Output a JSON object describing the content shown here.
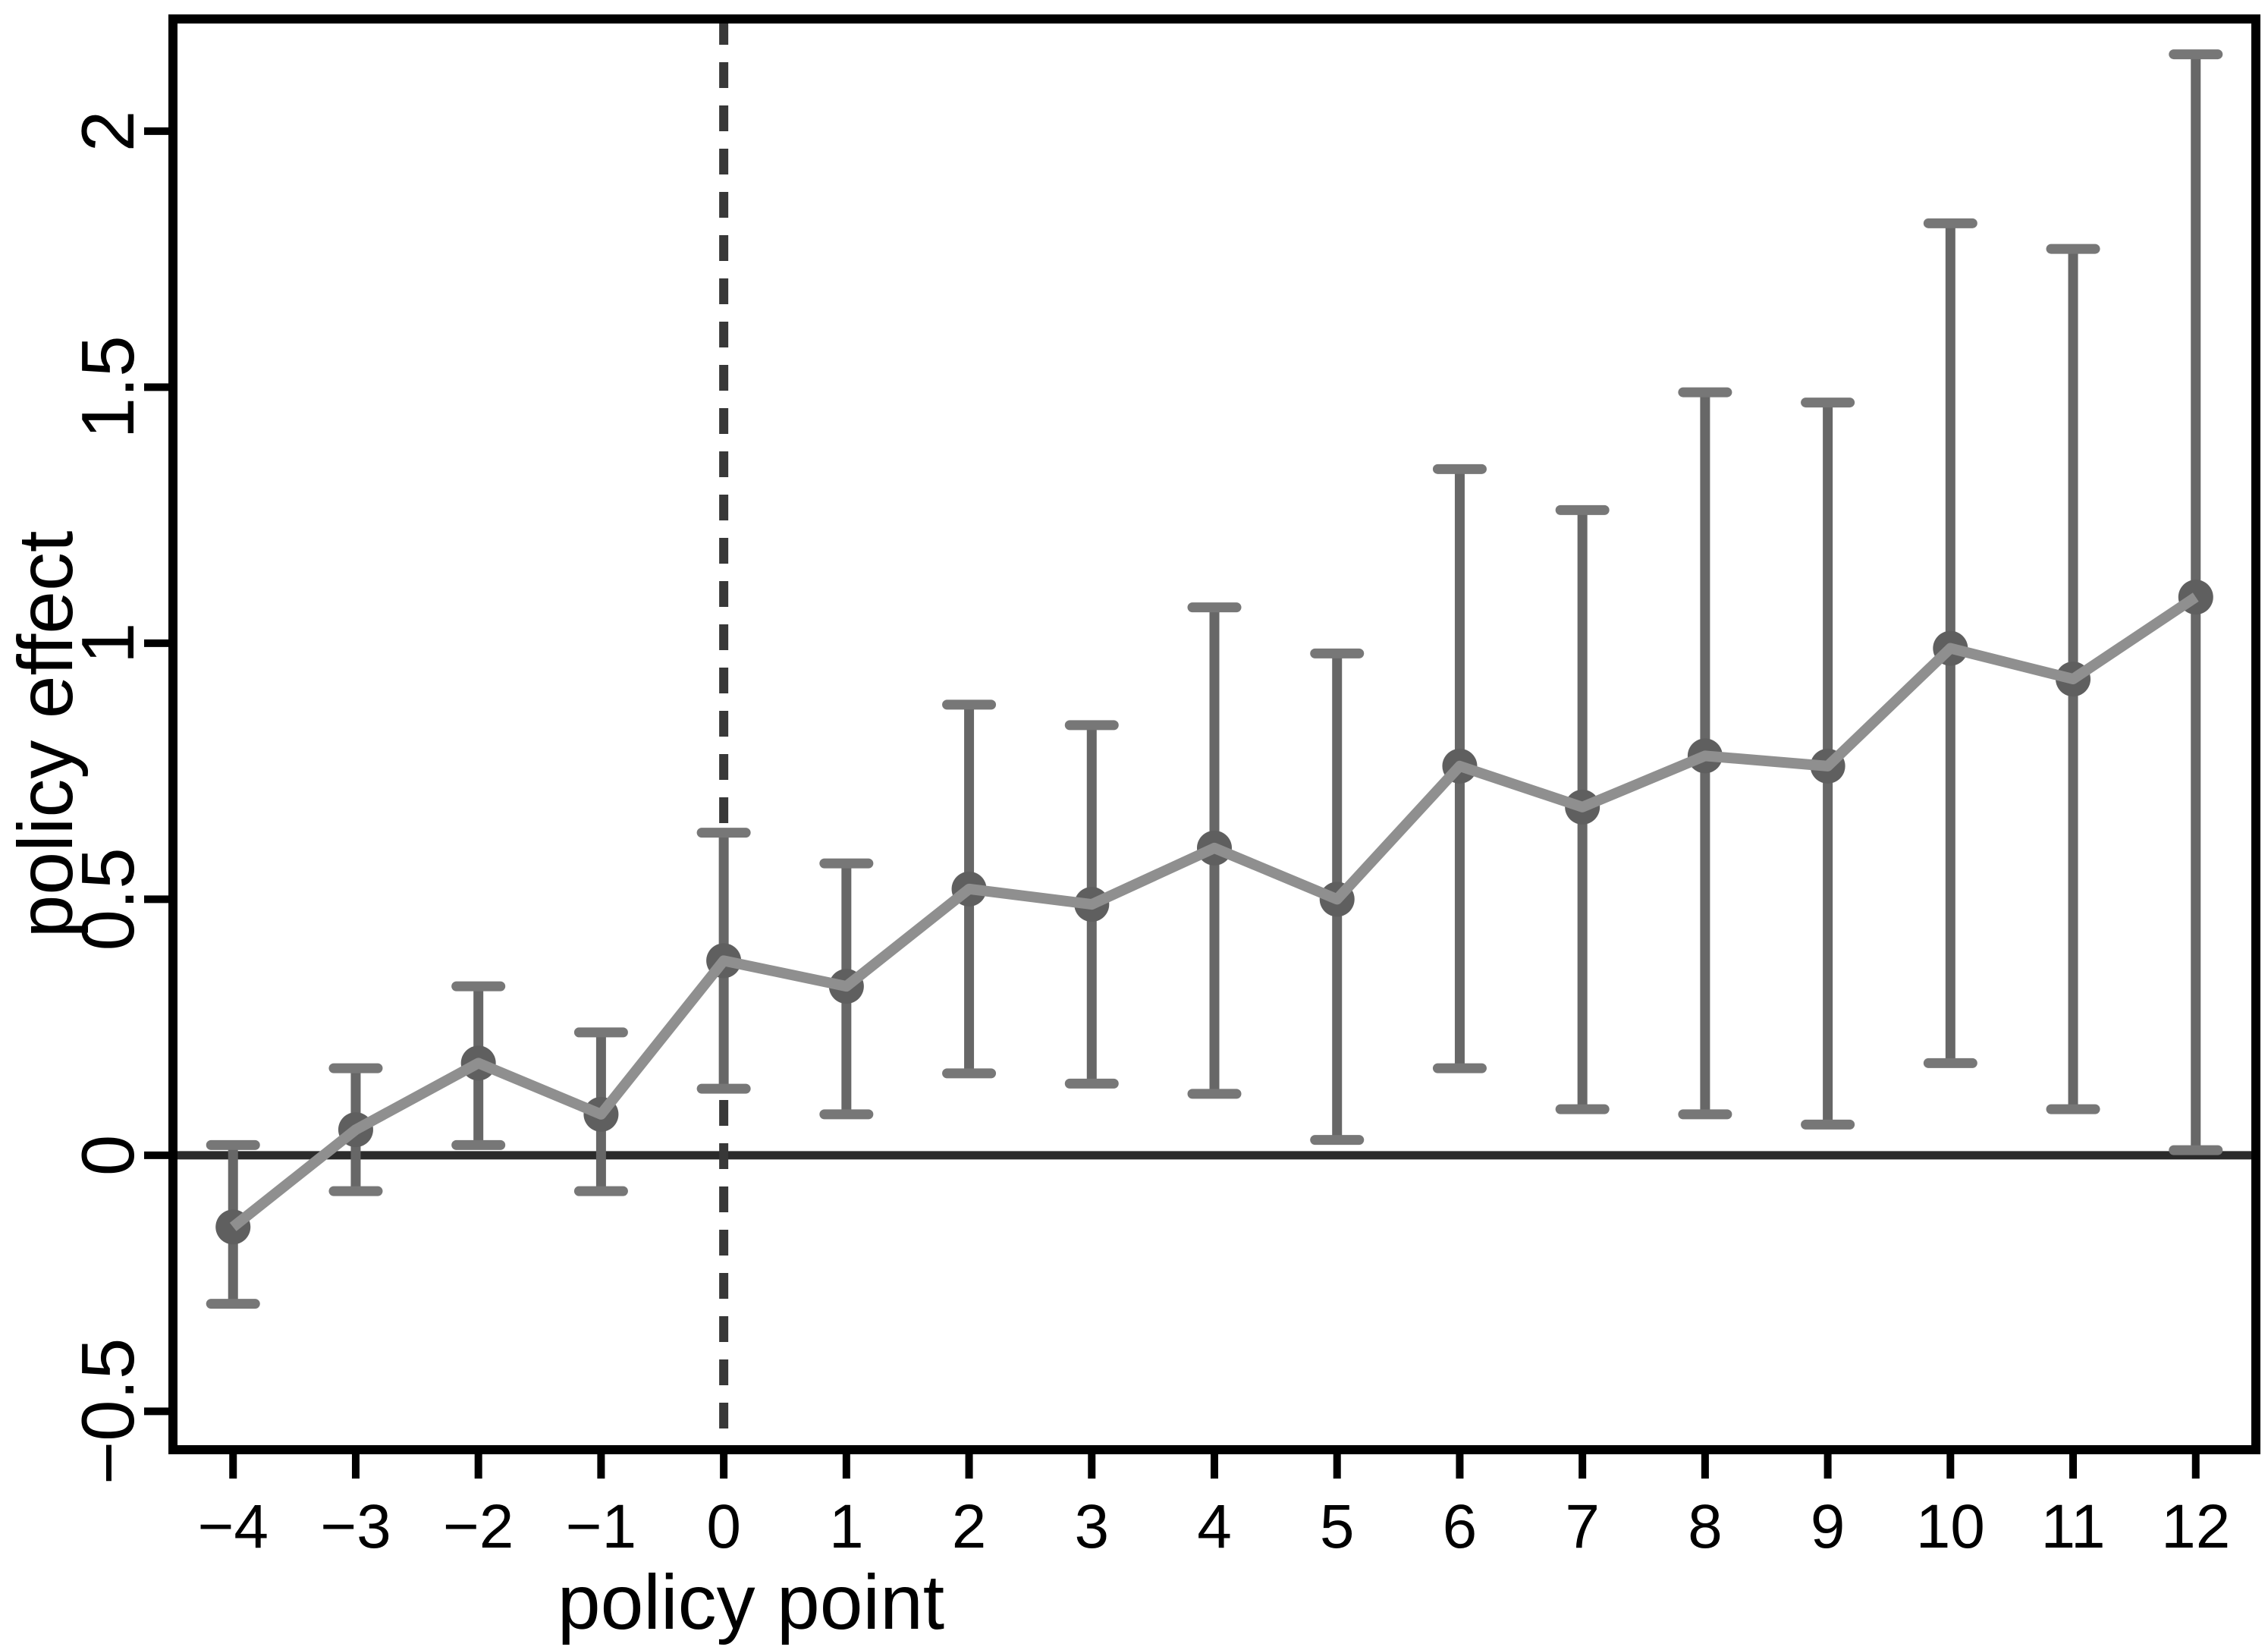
{
  "chart_data": {
    "type": "line",
    "title": "",
    "xlabel": "policy point",
    "ylabel": "policy effect",
    "x": [
      -4,
      -3,
      -2,
      -1,
      0,
      1,
      2,
      3,
      4,
      5,
      6,
      7,
      8,
      9,
      10,
      11,
      12
    ],
    "series": [
      {
        "name": "policy effect point estimate",
        "values": [
          -0.14,
          0.05,
          0.18,
          0.08,
          0.38,
          0.33,
          0.52,
          0.49,
          0.6,
          0.5,
          0.76,
          0.68,
          0.78,
          0.76,
          0.99,
          0.93,
          1.09
        ]
      }
    ],
    "ci_low": [
      -0.29,
      -0.07,
      0.02,
      -0.07,
      0.13,
      0.08,
      0.16,
      0.14,
      0.12,
      0.03,
      0.17,
      0.09,
      0.08,
      0.06,
      0.18,
      0.09,
      0.01
    ],
    "ci_high": [
      0.02,
      0.17,
      0.33,
      0.24,
      0.63,
      0.57,
      0.88,
      0.84,
      1.07,
      0.98,
      1.34,
      1.26,
      1.49,
      1.47,
      1.82,
      1.77,
      2.15
    ],
    "x_tick_labels": [
      "−4",
      "−3",
      "−2",
      "−1",
      "0",
      "1",
      "2",
      "3",
      "4",
      "5",
      "6",
      "7",
      "8",
      "9",
      "10",
      "11",
      "12"
    ],
    "y_ticks": [
      -0.5,
      0,
      0.5,
      1,
      1.5,
      2
    ],
    "y_tick_labels": [
      "−0.5",
      "0",
      "0.5",
      "1",
      "1.5",
      "2"
    ],
    "xlim": [
      -4.49,
      12.49
    ],
    "ylim": [
      -0.575,
      2.219
    ],
    "grid": false,
    "legend": "none",
    "reference_lines": {
      "horizontal_y": 0,
      "vertical_x": 0,
      "vertical_style": "dashed"
    },
    "colors": {
      "marker": "#5f5f5f",
      "trend_line": "#8f8f8f",
      "error_bar": "#676767",
      "error_cap": "#777777",
      "zero_line": "#2b2b2b",
      "dashed_line": "#383838",
      "frame": "#000000"
    }
  }
}
